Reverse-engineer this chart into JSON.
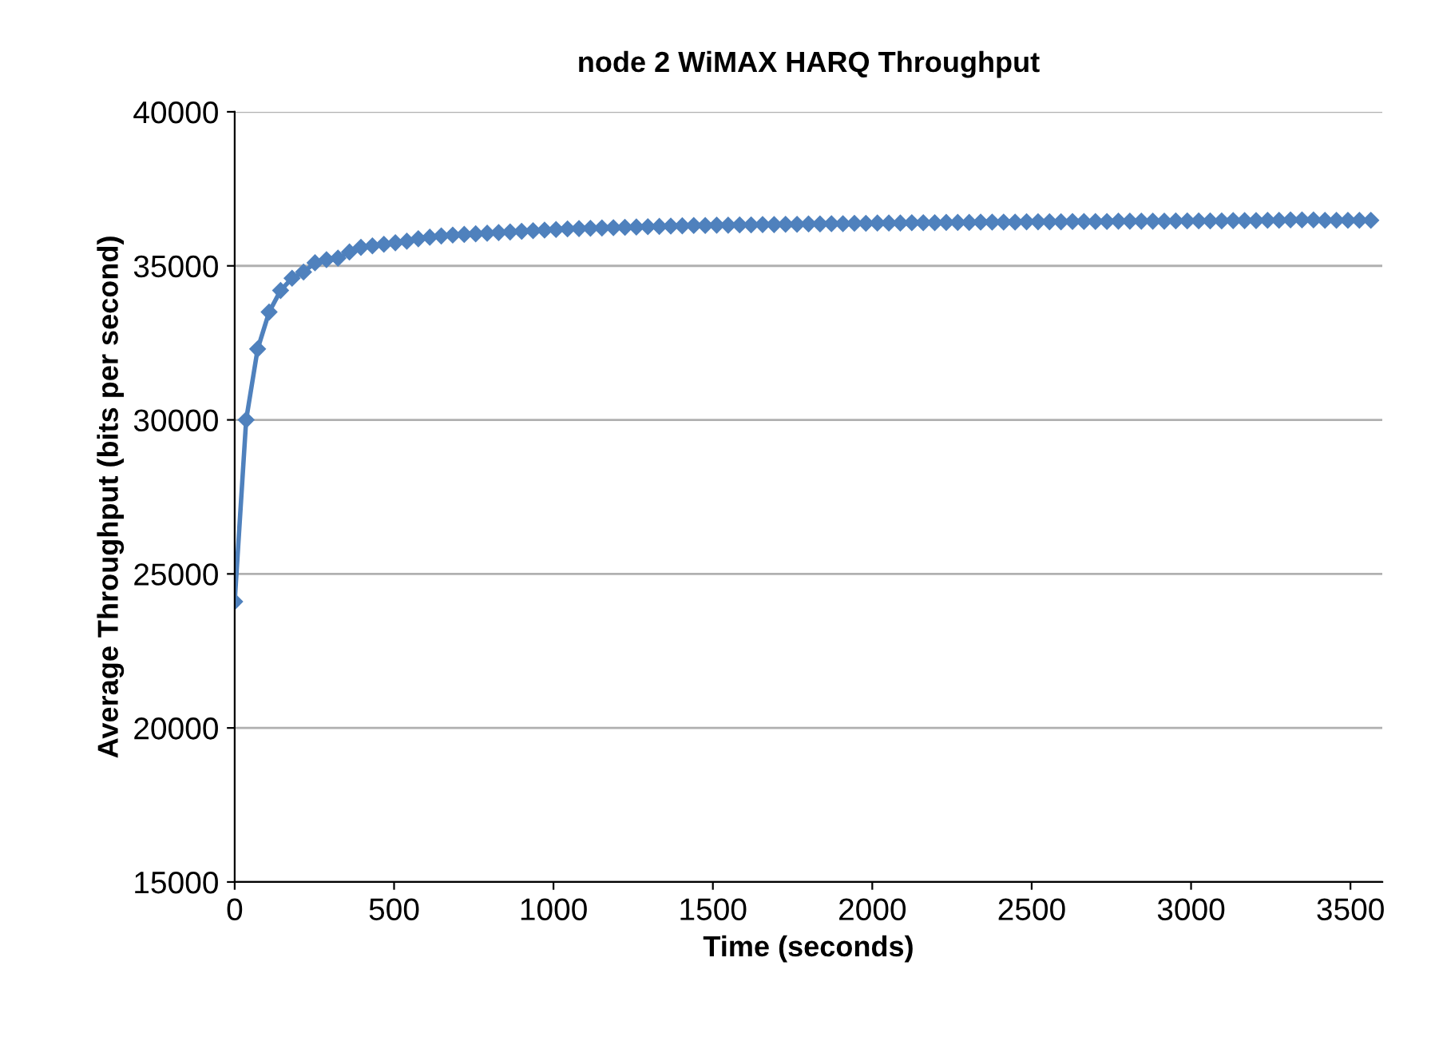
{
  "chart_data": {
    "type": "line",
    "title": "node 2 WiMAX HARQ Throughput",
    "xlabel": "Time (seconds)",
    "ylabel": "Average Throughput (bits per second)",
    "x": [
      0,
      36,
      72,
      108,
      144,
      180,
      216,
      252,
      288,
      324,
      360,
      396,
      432,
      468,
      504,
      540,
      576,
      612,
      648,
      684,
      720,
      756,
      792,
      828,
      864,
      900,
      936,
      972,
      1008,
      1044,
      1080,
      1116,
      1152,
      1188,
      1224,
      1260,
      1296,
      1332,
      1368,
      1404,
      1440,
      1476,
      1512,
      1548,
      1584,
      1620,
      1656,
      1692,
      1728,
      1764,
      1800,
      1836,
      1872,
      1908,
      1944,
      1980,
      2016,
      2052,
      2088,
      2124,
      2160,
      2196,
      2232,
      2268,
      2304,
      2340,
      2376,
      2412,
      2448,
      2484,
      2520,
      2556,
      2592,
      2628,
      2664,
      2700,
      2736,
      2772,
      2808,
      2844,
      2880,
      2916,
      2952,
      2988,
      3024,
      3060,
      3096,
      3132,
      3168,
      3204,
      3240,
      3276,
      3312,
      3348,
      3384,
      3420,
      3456,
      3492,
      3528,
      3564
    ],
    "series": [
      {
        "color": "#4f81bd",
        "values": [
          24100,
          30000,
          32300,
          33500,
          34200,
          34600,
          34800,
          35100,
          35200,
          35250,
          35450,
          35600,
          35650,
          35700,
          35750,
          35800,
          35880,
          35930,
          35970,
          36000,
          36020,
          36040,
          36060,
          36080,
          36100,
          36120,
          36140,
          36160,
          36180,
          36200,
          36210,
          36220,
          36230,
          36240,
          36250,
          36260,
          36270,
          36280,
          36290,
          36300,
          36310,
          36310,
          36320,
          36320,
          36330,
          36330,
          36340,
          36340,
          36350,
          36350,
          36360,
          36360,
          36370,
          36370,
          36380,
          36380,
          36390,
          36390,
          36390,
          36400,
          36400,
          36400,
          36410,
          36410,
          36410,
          36420,
          36420,
          36420,
          36420,
          36430,
          36430,
          36430,
          36430,
          36440,
          36440,
          36440,
          36440,
          36450,
          36450,
          36450,
          36450,
          36450,
          36460,
          36460,
          36460,
          36460,
          36460,
          36470,
          36470,
          36470,
          36480,
          36480,
          36490,
          36490,
          36490,
          36480,
          36480,
          36480,
          36480,
          36480
        ]
      }
    ],
    "xlim": [
      0,
      3600
    ],
    "xticks": [
      0,
      500,
      1000,
      1500,
      2000,
      2500,
      3000,
      3500
    ],
    "ylim": [
      15000,
      40000
    ],
    "yticks": [
      15000,
      20000,
      25000,
      30000,
      35000,
      40000
    ],
    "grid": "y",
    "marker": "diamond",
    "line_style": "solid",
    "legend": false
  }
}
